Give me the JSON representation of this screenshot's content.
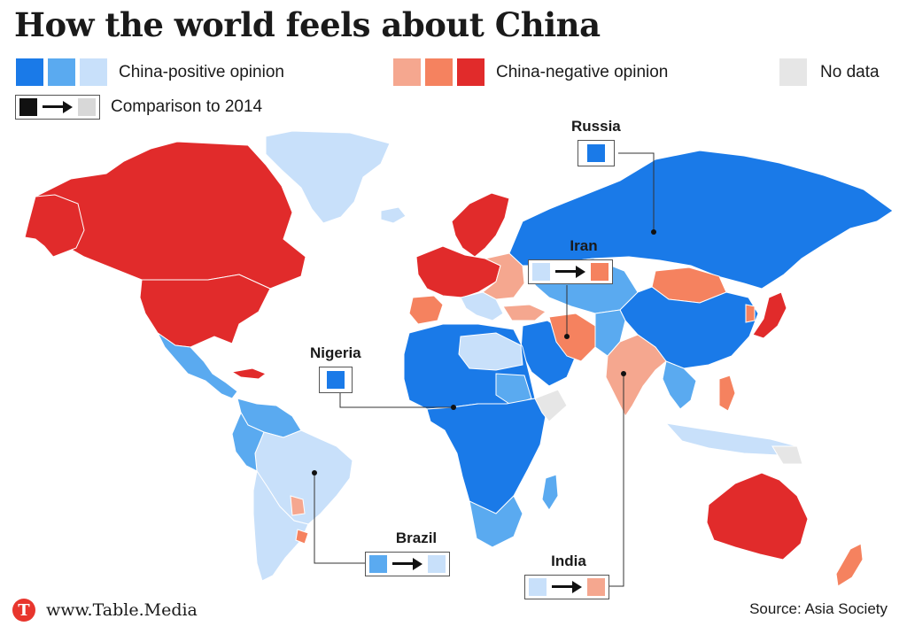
{
  "title": "How the world feels about China",
  "legend": {
    "positive_label": "China-positive opinion",
    "negative_label": "China-negative opinion",
    "nodata_label": "No data",
    "comparison_label": "Comparison to 2014",
    "positive_colors": [
      "#1a7ae8",
      "#5aaaf0",
      "#c8e0fa"
    ],
    "negative_colors": [
      "#f5a78f",
      "#f5825f",
      "#e12b2b"
    ],
    "nodata_color": "#e6e6e6"
  },
  "callouts": {
    "russia": {
      "name": "Russia",
      "color": "#1a7ae8"
    },
    "iran": {
      "name": "Iran",
      "from_color": "#c8e0fa",
      "to_color": "#f5825f"
    },
    "nigeria": {
      "name": "Nigeria",
      "color": "#1a7ae8"
    },
    "brazil": {
      "name": "Brazil",
      "from_color": "#5aaaf0",
      "to_color": "#c8e0fa"
    },
    "india": {
      "name": "India",
      "from_color": "#c8e0fa",
      "to_color": "#f5a78f"
    }
  },
  "footer": {
    "logo_letter": "T",
    "brand": "www.Table.Media",
    "source": "Source: Asia Society"
  }
}
